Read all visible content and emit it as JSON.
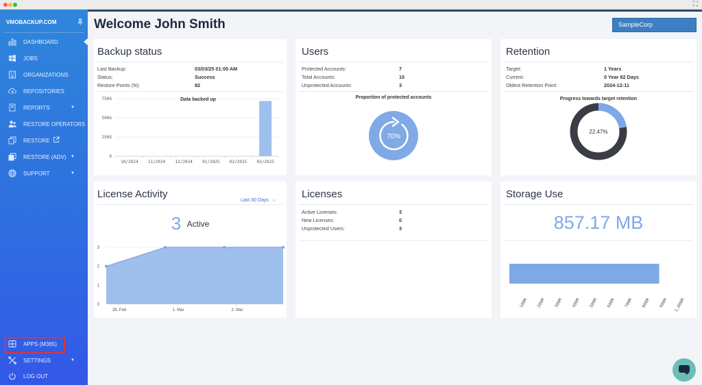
{
  "colors": {
    "sidebar_top": "#2f86db",
    "sidebar_bottom": "#3358e8",
    "accent": "#3d7fc2",
    "chart_fill": "#9fbfec",
    "chart_stroke": "#7fa6e4",
    "highlight": "#e0343a"
  },
  "sidebar": {
    "brand": "VMOBACKUP.COM",
    "items": [
      {
        "label": "DASHBOARD",
        "icon": "bar-chart-icon",
        "active": true
      },
      {
        "label": "JOBS",
        "icon": "windows-icon"
      },
      {
        "label": "ORGANIZATIONS",
        "icon": "building-icon"
      },
      {
        "label": "REPOSITORIES",
        "icon": "cloud-upload-icon"
      },
      {
        "label": "REPORTS",
        "icon": "book-icon",
        "has_submenu": true
      },
      {
        "label": "RESTORE OPERATORS",
        "icon": "users-icon"
      },
      {
        "label": "RESTORE",
        "icon": "copy-icon",
        "external": true
      },
      {
        "label": "RESTORE (ADV)",
        "icon": "copy-icon",
        "has_submenu": true
      },
      {
        "label": "SUPPORT",
        "icon": "globe-icon",
        "has_submenu": true
      }
    ],
    "bottom_items": [
      {
        "label": "APPS (M365)",
        "icon": "grid-icon",
        "highlighted": true
      },
      {
        "label": "SETTINGS",
        "icon": "wrench-icon",
        "has_submenu": true
      },
      {
        "label": "LOG OUT",
        "icon": "power-icon"
      }
    ]
  },
  "header": {
    "welcome": "Welcome John Smith",
    "company": "SampleCorp"
  },
  "backup_status": {
    "title": "Backup status",
    "rows": [
      {
        "label": "Last Backup:",
        "value": "03/03/25 01:00 AM"
      },
      {
        "label": "Status:",
        "value": "Success"
      },
      {
        "label": "Restore Points (N):",
        "value": "82"
      }
    ],
    "chart_title": "Data backed up"
  },
  "users": {
    "title": "Users",
    "rows": [
      {
        "label": "Protected Accounts:",
        "value": "7"
      },
      {
        "label": "Total Accounts:",
        "value": "10"
      },
      {
        "label": "Unprotected Accounts:",
        "value": "3"
      }
    ],
    "chart_title": "Proportion of protected accounts",
    "proportion_label": "70%",
    "proportion": 0.7
  },
  "retention": {
    "title": "Retention",
    "rows": [
      {
        "label": "Target:",
        "value": "1 Years"
      },
      {
        "label": "Current:",
        "value": "0 Year 82 Days"
      },
      {
        "label": "Oldest Retention Point:",
        "value": "2024-12-11"
      }
    ],
    "chart_title": "Progress towards target retention",
    "progress_label": "22.47%",
    "progress": 0.2247
  },
  "license_activity": {
    "title": "License Activity",
    "period": "Last 30 Days",
    "active_count": "3",
    "active_label": "Active"
  },
  "licenses": {
    "title": "Licenses",
    "rows": [
      {
        "label": "Active Licenses:",
        "value": "3"
      },
      {
        "label": "New Licenses:",
        "value": "0"
      },
      {
        "label": "Unprotected Users:",
        "value": "3"
      }
    ]
  },
  "storage": {
    "title": "Storage Use",
    "value": "857.17 MB"
  },
  "chart_data": [
    {
      "type": "bar",
      "title": "Data backed up",
      "categories": [
        "10/2024",
        "11/2024",
        "12/2024",
        "01/2025",
        "02/2025",
        "03/2025"
      ],
      "values": [
        0,
        0,
        0,
        0,
        0,
        720
      ],
      "y_ticks": [
        "750G",
        "500G",
        "250G",
        "0"
      ],
      "ylim": [
        0,
        750
      ],
      "grid": true
    },
    {
      "type": "area",
      "x_labels": [
        "28. Feb",
        "1. Mar",
        "2. Mar"
      ],
      "x_positions": [
        0,
        1,
        2,
        3
      ],
      "values": [
        2,
        3,
        3,
        3
      ],
      "y_ticks": [
        "3",
        "2",
        "1",
        "0"
      ],
      "ylim": [
        0,
        3
      ],
      "grid": true
    },
    {
      "type": "bar",
      "orientation": "horizontal",
      "values": [
        857.17
      ],
      "x_ticks": [
        "100M",
        "200M",
        "300M",
        "400M",
        "500M",
        "600M",
        "700M",
        "800M",
        "900M",
        "1,000M"
      ],
      "xlim": [
        0,
        1000
      ]
    }
  ]
}
